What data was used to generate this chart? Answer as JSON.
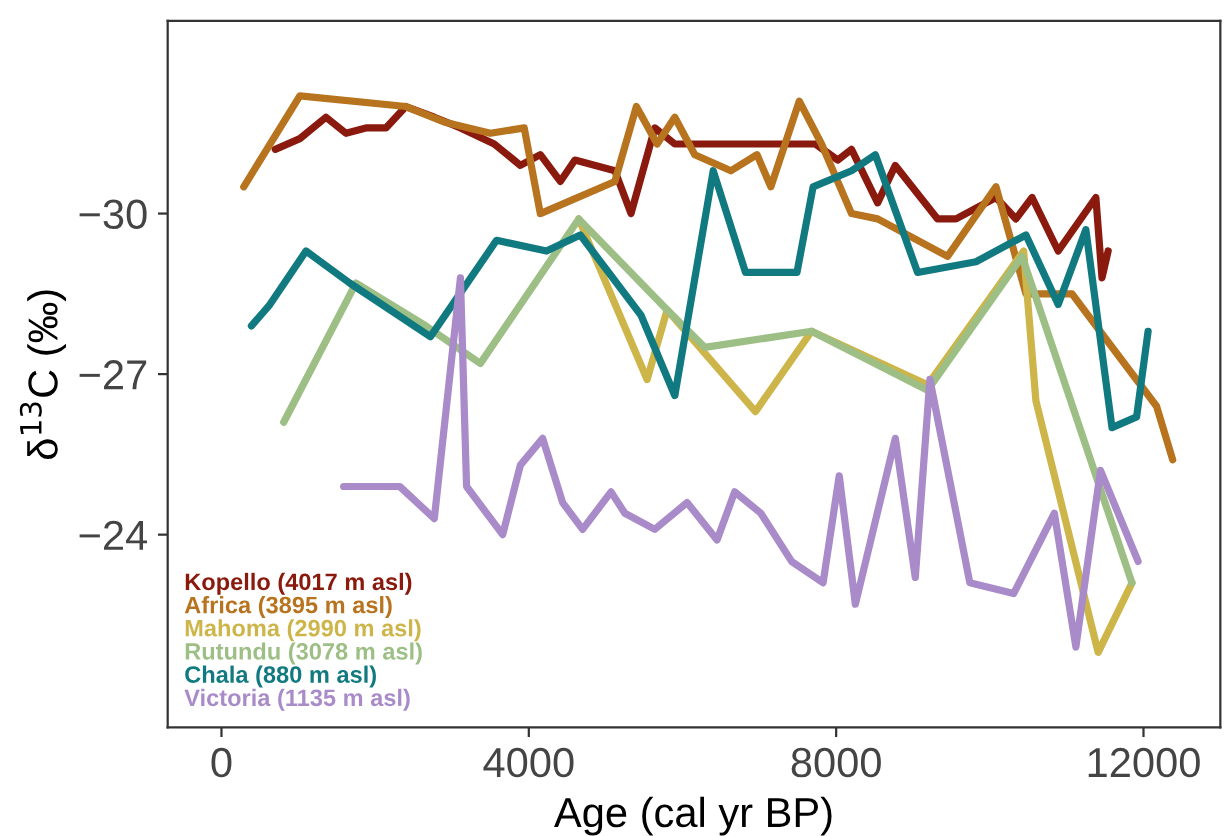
{
  "chart_data": {
    "type": "line",
    "xlabel": "Age (cal yr BP)",
    "ylabel": "δ$^{13}$C (‰)",
    "xlim": [
      -700,
      13000
    ],
    "ylim": [
      -20.4,
      -33.6
    ],
    "xticks": [
      0,
      4000,
      8000,
      12000
    ],
    "yticks": [
      {
        "value": -30,
        "label": "−30"
      },
      {
        "value": -27,
        "label": "−27"
      },
      {
        "value": -24,
        "label": "−24"
      }
    ],
    "grid": false,
    "legend": "bottom left",
    "marker": "none",
    "line_style": "solid",
    "series": [
      {
        "name": "Kopello (4017 m asl)",
        "color": "#8b1a0e",
        "x": [
          700,
          1020,
          1360,
          1620,
          1880,
          2140,
          2400,
          2770,
          3110,
          3550,
          3890,
          4150,
          4410,
          4600,
          5120,
          5330,
          5640,
          5900,
          7730,
          8020,
          8200,
          8540,
          8770,
          9320,
          9560,
          10080,
          10340,
          10550,
          10890,
          11380,
          11460,
          11540
        ],
        "values": [
          -31.2,
          -31.4,
          -31.8,
          -31.5,
          -31.6,
          -31.6,
          -32.0,
          -31.8,
          -31.6,
          -31.3,
          -30.9,
          -31.1,
          -30.6,
          -31.0,
          -30.8,
          -30.0,
          -31.6,
          -31.3,
          -31.3,
          -31.0,
          -31.2,
          -30.2,
          -30.9,
          -29.9,
          -29.9,
          -30.3,
          -29.9,
          -30.3,
          -29.3,
          -30.3,
          -28.8,
          -29.3
        ]
      },
      {
        "name": "Africa (3895 m asl)",
        "color": "#b8731e",
        "x": [
          290,
          1020,
          2400,
          2920,
          3500,
          3940,
          4150,
          5120,
          5400,
          5670,
          5900,
          6160,
          6630,
          6970,
          7150,
          7520,
          7810,
          8200,
          8540,
          9450,
          10080,
          10470,
          11070,
          11540,
          12170,
          12380
        ],
        "values": [
          -30.5,
          -32.2,
          -32.0,
          -31.7,
          -31.5,
          -31.6,
          -30.0,
          -30.6,
          -32.0,
          -31.3,
          -31.8,
          -31.1,
          -30.8,
          -31.1,
          -30.5,
          -32.1,
          -31.3,
          -30.0,
          -29.9,
          -29.2,
          -30.5,
          -28.5,
          -28.5,
          -27.6,
          -26.4,
          -25.4
        ]
      },
      {
        "name": "Mahoma (2990 m asl)",
        "color": "#cdb54a",
        "x": [
          4650,
          5540,
          5800,
          6950,
          7680,
          9190,
          10440,
          10600,
          11410,
          11850
        ],
        "values": [
          -29.9,
          -26.9,
          -28.2,
          -26.3,
          -27.8,
          -26.8,
          -29.3,
          -26.5,
          -21.8,
          -23.1
        ]
      },
      {
        "name": "Rutundu (3078 m asl)",
        "color": "#9dbf86",
        "x": [
          810,
          1750,
          2660,
          3370,
          4650,
          5800,
          6290,
          7680,
          9190,
          10420,
          11850
        ],
        "values": [
          -26.1,
          -28.7,
          -27.9,
          -27.2,
          -29.9,
          -28.2,
          -27.5,
          -27.8,
          -26.7,
          -29.2,
          -23.1
        ]
      },
      {
        "name": "Chala (880 m asl)",
        "color": "#117a80",
        "x": [
          390,
          630,
          1100,
          1670,
          2720,
          3580,
          4230,
          4670,
          5460,
          5900,
          6400,
          6820,
          7490,
          7700,
          8200,
          8510,
          9060,
          9820,
          10470,
          10890,
          11250,
          11590,
          11910,
          12060
        ],
        "values": [
          -27.9,
          -28.3,
          -29.3,
          -28.7,
          -27.7,
          -29.5,
          -29.3,
          -29.6,
          -28.1,
          -26.6,
          -30.8,
          -28.9,
          -28.9,
          -30.5,
          -30.8,
          -31.1,
          -28.9,
          -29.1,
          -29.6,
          -28.3,
          -29.7,
          -26.0,
          -26.2,
          -27.8
        ]
      },
      {
        "name": "Victoria (1135 m asl)",
        "color": "#a98bc9",
        "x": [
          1590,
          2320,
          2770,
          3110,
          3190,
          3660,
          3890,
          4180,
          4440,
          4700,
          5070,
          5250,
          5640,
          6060,
          6450,
          6680,
          7020,
          7420,
          7830,
          8040,
          8250,
          8770,
          9030,
          9220,
          9740,
          10310,
          10840,
          11120,
          11440,
          11930
        ],
        "values": [
          -24.9,
          -24.9,
          -24.3,
          -28.8,
          -24.9,
          -24.0,
          -25.3,
          -25.8,
          -24.6,
          -24.1,
          -24.8,
          -24.4,
          -24.1,
          -24.6,
          -23.9,
          -24.8,
          -24.4,
          -23.5,
          -23.1,
          -25.1,
          -22.7,
          -25.8,
          -23.2,
          -26.9,
          -23.1,
          -22.9,
          -24.4,
          -21.9,
          -25.2,
          -23.5
        ]
      }
    ]
  }
}
